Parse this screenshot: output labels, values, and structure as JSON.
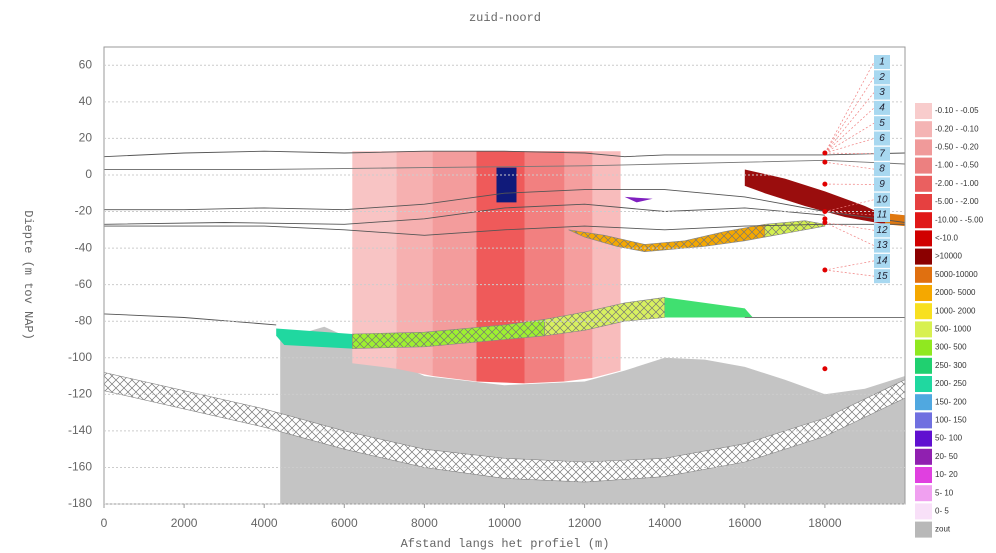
{
  "chart_data": {
    "type": "section",
    "title": "zuid-noord",
    "xlabel": "Afstand langs het profiel (m)",
    "ylabel": "Diepte (m tov NAP)",
    "xlim": [
      0,
      20000
    ],
    "ylim": [
      -180,
      70
    ],
    "xticks": [
      0,
      2000,
      4000,
      6000,
      8000,
      10000,
      12000,
      14000,
      16000,
      18000
    ],
    "yticks": [
      -180,
      -160,
      -140,
      -120,
      -100,
      -80,
      -60,
      -40,
      -20,
      0,
      20,
      40,
      60
    ],
    "grid": true,
    "polygons": [
      {
        "color": "#c4c4c4",
        "x": [
          4400,
          5500,
          6000,
          7000,
          8000,
          10000,
          12000,
          13000,
          14000,
          15000,
          16000,
          17000,
          18000,
          19000,
          20000,
          20000,
          4400
        ],
        "y": [
          -90,
          -83,
          -88,
          -100,
          -110,
          -115,
          -113,
          -107,
          -100,
          -101,
          -105,
          -112,
          -120,
          -117,
          -110,
          -180,
          -180
        ]
      },
      {
        "color": "#ffffff",
        "hatch": true,
        "x": [
          0,
          2000,
          4000,
          6000,
          8000,
          10000,
          12000,
          14000,
          16000,
          18000,
          20000,
          20000,
          18000,
          16000,
          14000,
          12000,
          10000,
          8000,
          6000,
          4000,
          2000,
          0
        ],
        "y": [
          -108,
          -118,
          -128,
          -140,
          -150,
          -155,
          -157,
          -155,
          -147,
          -133,
          -112,
          -122,
          -143,
          -157,
          -165,
          -168,
          -166,
          -160,
          -150,
          -138,
          -128,
          -118
        ]
      },
      {
        "color": "#f8c4c4",
        "x": [
          6200,
          7300,
          7300,
          6200
        ],
        "y": [
          13,
          13,
          -106,
          -103
        ]
      },
      {
        "color": "#f6b0b0",
        "x": [
          7300,
          8200,
          8200,
          7300
        ],
        "y": [
          13,
          13,
          -110,
          -106
        ]
      },
      {
        "color": "#f39c9c",
        "x": [
          8200,
          9300,
          9300,
          8200
        ],
        "y": [
          13,
          13,
          -113,
          -110
        ]
      },
      {
        "color": "#ef5a5a",
        "x": [
          9300,
          10500,
          10500,
          9300
        ],
        "y": [
          13,
          13,
          -114,
          -113
        ]
      },
      {
        "color": "#f28080",
        "x": [
          10500,
          11500,
          11500,
          10500
        ],
        "y": [
          13,
          13,
          -113,
          -114
        ]
      },
      {
        "color": "#f59e9e",
        "x": [
          11500,
          12200,
          12200,
          11500
        ],
        "y": [
          13,
          13,
          -111,
          -113
        ]
      },
      {
        "color": "#f8bcbc",
        "x": [
          12200,
          12900,
          12900,
          12200
        ],
        "y": [
          13,
          13,
          -107,
          -111
        ]
      },
      {
        "color": "#101a7a",
        "x": [
          9800,
          10300,
          10300,
          9800
        ],
        "y": [
          4,
          4,
          -15,
          -15
        ]
      },
      {
        "color": "#9a0d0d",
        "x": [
          16000,
          17000,
          18000,
          19000,
          19500,
          19500,
          18500,
          17500,
          16500,
          16000
        ],
        "y": [
          3,
          -2,
          -9,
          -17,
          -22,
          -27,
          -23,
          -17,
          -10,
          -6
        ]
      },
      {
        "color": "#e07810",
        "x": [
          19500,
          20000,
          20000,
          19500
        ],
        "y": [
          -21,
          -22,
          -28,
          -27
        ]
      },
      {
        "color": "#f5a800",
        "hatch": true,
        "x": [
          11600,
          12500,
          13500,
          14500,
          15500,
          16500,
          16500,
          16000,
          15000,
          14000,
          13500,
          12800,
          12000
        ],
        "y": [
          -30,
          -33,
          -38,
          -36,
          -31,
          -27,
          -34,
          -36,
          -39,
          -41,
          -42,
          -39,
          -34
        ]
      },
      {
        "color": "#d4f050",
        "hatch": true,
        "x": [
          16500,
          17500,
          18000,
          18000,
          17000,
          16500
        ],
        "y": [
          -27,
          -25,
          -27,
          -28,
          -32,
          -34
        ]
      },
      {
        "color": "#8020c0",
        "x": [
          13000,
          13700,
          13300
        ],
        "y": [
          -12,
          -13,
          -15
        ]
      },
      {
        "color": "#20d8a0",
        "x": [
          4300,
          6200,
          6200,
          4500,
          4300
        ],
        "y": [
          -84,
          -87,
          -95,
          -93,
          -88
        ]
      },
      {
        "color": "#9ef030",
        "hatch": true,
        "x": [
          6200,
          8000,
          10000,
          11000,
          11000,
          10000,
          8000,
          6200
        ],
        "y": [
          -87,
          -86,
          -82,
          -79,
          -88,
          -90,
          -94,
          -95
        ]
      },
      {
        "color": "#d8f060",
        "hatch": true,
        "x": [
          11000,
          12000,
          13000,
          14000,
          14000,
          13000,
          12000,
          11000
        ],
        "y": [
          -79,
          -75,
          -70,
          -67,
          -78,
          -80,
          -85,
          -88
        ]
      },
      {
        "color": "#40e070",
        "x": [
          14000,
          15000,
          16000,
          16200,
          15000,
          14000
        ],
        "y": [
          -67,
          -70,
          -73,
          -78,
          -78,
          -78
        ]
      }
    ],
    "lines": [
      {
        "color": "#555555",
        "x": [
          0,
          2000,
          4000,
          6000,
          8000,
          10000,
          12000,
          13000,
          14000,
          16000,
          18000,
          20000
        ],
        "y": [
          10,
          12,
          13,
          12,
          13,
          13,
          12,
          10,
          11,
          11,
          11,
          12
        ]
      },
      {
        "color": "#777777",
        "x": [
          0,
          4000,
          8000,
          12000,
          14000,
          16000,
          18000,
          20000
        ],
        "y": [
          3,
          3,
          4,
          5,
          6,
          7,
          8,
          6
        ]
      },
      {
        "color": "#555555",
        "x": [
          0,
          2000,
          4000,
          6000,
          8000,
          10000,
          12000,
          14000,
          16000,
          18000,
          20000
        ],
        "y": [
          -19,
          -19,
          -18,
          -19,
          -16,
          -10,
          -8,
          -8,
          -12,
          -20,
          -26
        ]
      },
      {
        "color": "#555555",
        "x": [
          0,
          3000,
          6000,
          8000,
          10000,
          12000,
          14000,
          16000,
          18000
        ],
        "y": [
          -27,
          -26,
          -27,
          -24,
          -18,
          -16,
          -20,
          -18,
          -22
        ]
      },
      {
        "color": "#555555",
        "x": [
          0,
          4000,
          6000,
          8000,
          10000,
          12000,
          14000,
          16000,
          18000,
          20000
        ],
        "y": [
          -28,
          -28,
          -30,
          -33,
          -30,
          -28,
          -30,
          -28,
          -27,
          -27
        ]
      },
      {
        "color": "#555555",
        "x": [
          0,
          2000,
          4300
        ],
        "y": [
          -76,
          -78,
          -82
        ]
      },
      {
        "color": "#777777",
        "x": [
          16000,
          20000
        ],
        "y": [
          -78,
          -78
        ]
      }
    ],
    "points": {
      "color": "#e00000",
      "x": [
        18000,
        18000,
        18000,
        18000,
        18000,
        18000,
        18000,
        18000
      ],
      "y": [
        12,
        7,
        -5,
        -20,
        -24,
        -26,
        -52,
        -106
      ]
    },
    "labels": [
      "1",
      "2",
      "3",
      "4",
      "5",
      "6",
      "7",
      "8",
      "9",
      "10",
      "11",
      "12",
      "13",
      "14",
      "15"
    ],
    "legend": [
      {
        "label": "-0.10 - -0.05",
        "color": "#f8cccc"
      },
      {
        "label": "-0.20 - -0.10",
        "color": "#f4b4b4"
      },
      {
        "label": "-0.50 - -0.20",
        "color": "#f09a9a"
      },
      {
        "label": "-1.00 - -0.50",
        "color": "#ec8080"
      },
      {
        "label": "-2.00 - -1.00",
        "color": "#ea6060"
      },
      {
        "label": "-5.00 - -2.00",
        "color": "#e64040"
      },
      {
        "label": "-10.00 - -5.00",
        "color": "#e01818"
      },
      {
        "label": "<-10.0",
        "color": "#d00000"
      },
      {
        "label": ">10000",
        "color": "#8b0000"
      },
      {
        "label": "5000-10000",
        "color": "#e07010"
      },
      {
        "label": "2000- 5000",
        "color": "#f5a800"
      },
      {
        "label": "1000- 2000",
        "color": "#f8e020"
      },
      {
        "label": "500- 1000",
        "color": "#d8f050"
      },
      {
        "label": "300- 500",
        "color": "#90e820"
      },
      {
        "label": "250- 300",
        "color": "#20d070"
      },
      {
        "label": "200- 250",
        "color": "#20d8a0"
      },
      {
        "label": "150- 200",
        "color": "#50a8e0"
      },
      {
        "label": "100- 150",
        "color": "#7070e0"
      },
      {
        "label": "50- 100",
        "color": "#6010d0"
      },
      {
        "label": "20- 50",
        "color": "#9020b0"
      },
      {
        "label": "10- 20",
        "color": "#e040e0"
      },
      {
        "label": "5- 10",
        "color": "#f0a0f0"
      },
      {
        "label": "0- 5",
        "color": "#f8e0f8"
      },
      {
        "label": "zout",
        "color": "#b8b8b8"
      }
    ]
  }
}
